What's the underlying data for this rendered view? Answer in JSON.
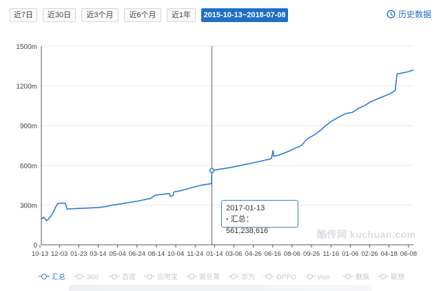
{
  "tabs": [
    {
      "label": "近7日",
      "active": false
    },
    {
      "label": "近30日",
      "active": false
    },
    {
      "label": "近3个月",
      "active": false
    },
    {
      "label": "近6个月",
      "active": false
    },
    {
      "label": "近1年",
      "active": false
    },
    {
      "label": "2015-10-13~2018-07-08",
      "active": true
    }
  ],
  "history_link": {
    "label": "历史数据",
    "icon": "history-clock-icon"
  },
  "tooltip": {
    "date": "2017-01-13",
    "series": "汇总",
    "value": "561,238,616",
    "dot": "•"
  },
  "watermark": "酷传网 kuchuan.com",
  "legend": [
    {
      "label": "汇总",
      "active": true
    },
    {
      "label": "360",
      "active": false
    },
    {
      "label": "百度",
      "active": false
    },
    {
      "label": "应用宝",
      "active": false
    },
    {
      "label": "豌豆荚",
      "active": false
    },
    {
      "label": "华为",
      "active": false
    },
    {
      "label": "OPPO",
      "active": false
    },
    {
      "label": "vivo",
      "active": false
    },
    {
      "label": "魅族",
      "active": false
    },
    {
      "label": "联想",
      "active": false
    }
  ],
  "chart_data": {
    "type": "line",
    "ylim": [
      0,
      1500
    ],
    "y_unit": "m",
    "y_ticks": [
      "0",
      "300m",
      "600m",
      "900m",
      "1200m",
      "1500m"
    ],
    "y_tick_values": [
      0,
      300,
      600,
      900,
      1200,
      1500
    ],
    "x_tick_labels": [
      "10-13",
      "12-03",
      "01-23",
      "03-14",
      "05-04",
      "06-24",
      "08-14",
      "10-04",
      "11-24",
      "01-14",
      "03-06",
      "04-26",
      "06-16",
      "08-06",
      "09-26",
      "11-16",
      "01-06",
      "02-26",
      "04-18",
      "06-08"
    ],
    "grid": true,
    "legend_position": "bottom",
    "crosshair_date": "2017-01-13",
    "series": [
      {
        "name": "汇总",
        "color": "#2b7bd0",
        "points": [
          [
            "2015-10-13",
            195
          ],
          [
            "2015-10-20",
            208
          ],
          [
            "2015-10-27",
            182
          ],
          [
            "2015-11-03",
            200
          ],
          [
            "2015-11-12",
            235
          ],
          [
            "2015-11-20",
            282
          ],
          [
            "2015-11-26",
            312
          ],
          [
            "2015-12-03",
            314
          ],
          [
            "2015-12-12",
            315
          ],
          [
            "2015-12-17",
            312
          ],
          [
            "2015-12-21",
            270
          ],
          [
            "2016-01-01",
            272
          ],
          [
            "2016-01-23",
            275
          ],
          [
            "2016-02-20",
            278
          ],
          [
            "2016-03-14",
            282
          ],
          [
            "2016-04-05",
            290
          ],
          [
            "2016-04-20",
            300
          ],
          [
            "2016-05-04",
            305
          ],
          [
            "2016-06-01",
            318
          ],
          [
            "2016-06-24",
            328
          ],
          [
            "2016-07-15",
            340
          ],
          [
            "2016-08-01",
            350
          ],
          [
            "2016-08-14",
            375
          ],
          [
            "2016-09-05",
            382
          ],
          [
            "2016-09-20",
            388
          ],
          [
            "2016-09-24",
            366
          ],
          [
            "2016-10-01",
            372
          ],
          [
            "2016-10-02",
            395
          ],
          [
            "2016-10-04",
            400
          ],
          [
            "2016-10-20",
            408
          ],
          [
            "2016-11-05",
            420
          ],
          [
            "2016-11-24",
            435
          ],
          [
            "2016-12-15",
            450
          ],
          [
            "2017-01-12",
            462
          ],
          [
            "2017-01-13",
            561
          ],
          [
            "2017-02-05",
            572
          ],
          [
            "2017-03-06",
            585
          ],
          [
            "2017-04-01",
            600
          ],
          [
            "2017-04-26",
            615
          ],
          [
            "2017-05-20",
            628
          ],
          [
            "2017-06-05",
            640
          ],
          [
            "2017-06-16",
            645
          ],
          [
            "2017-06-22",
            655
          ],
          [
            "2017-06-26",
            712
          ],
          [
            "2017-06-28",
            668
          ],
          [
            "2017-07-15",
            680
          ],
          [
            "2017-08-06",
            705
          ],
          [
            "2017-08-25",
            730
          ],
          [
            "2017-09-10",
            750
          ],
          [
            "2017-09-26",
            800
          ],
          [
            "2017-10-15",
            830
          ],
          [
            "2017-11-01",
            865
          ],
          [
            "2017-11-16",
            905
          ],
          [
            "2017-12-01",
            935
          ],
          [
            "2017-12-20",
            965
          ],
          [
            "2018-01-06",
            990
          ],
          [
            "2018-01-25",
            1000
          ],
          [
            "2018-02-10",
            1030
          ],
          [
            "2018-02-26",
            1050
          ],
          [
            "2018-03-15",
            1080
          ],
          [
            "2018-04-01",
            1100
          ],
          [
            "2018-04-18",
            1120
          ],
          [
            "2018-05-05",
            1140
          ],
          [
            "2018-05-15",
            1155
          ],
          [
            "2018-05-20",
            1165
          ],
          [
            "2018-05-25",
            1290
          ],
          [
            "2018-06-08",
            1298
          ],
          [
            "2018-06-25",
            1308
          ],
          [
            "2018-07-08",
            1322
          ]
        ]
      }
    ]
  }
}
